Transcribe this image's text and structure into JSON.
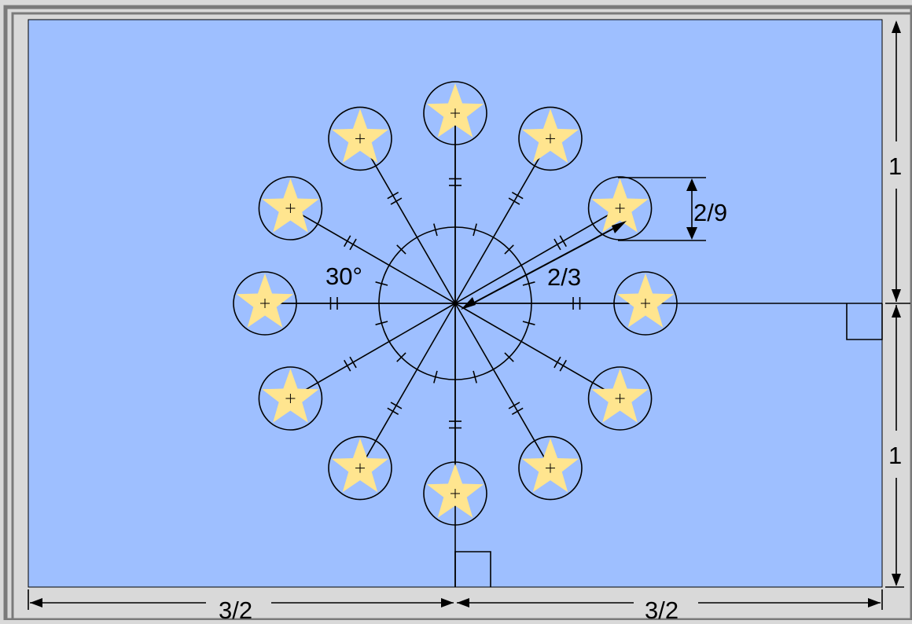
{
  "diagram": {
    "labels": {
      "angle": "30°",
      "orbit_radius": "2/3",
      "star_circle_diameter": "2/9",
      "height_upper": "1",
      "height_lower": "1",
      "width_left": "3/2",
      "width_right": "3/2"
    },
    "star_count": 12,
    "colors": {
      "background": "#d9d9d9",
      "frame": "#7a7a7a",
      "flag_field": "#9ebfff",
      "star_fill": "#ffe58f",
      "line": "#000000"
    }
  }
}
